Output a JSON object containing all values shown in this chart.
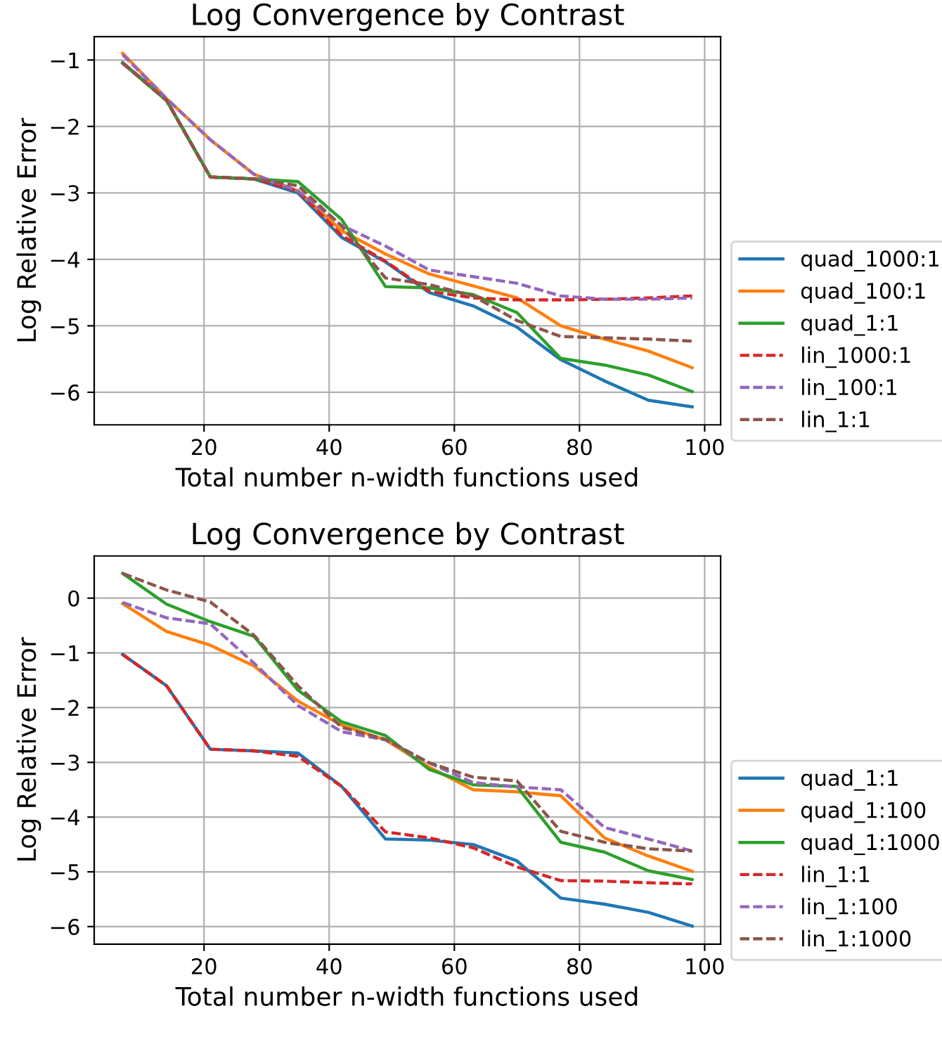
{
  "chart_data": [
    {
      "type": "line",
      "title": "Log Convergence by Contrast",
      "xlabel": "Total number n-width functions used",
      "ylabel": "Log Relative Error",
      "x": [
        7,
        14,
        21,
        28,
        35,
        42,
        49,
        56,
        63,
        70,
        77,
        84,
        91,
        98
      ],
      "xlim": [
        2.45,
        102.55
      ],
      "xticks": [
        20,
        40,
        60,
        80,
        100
      ],
      "ylim": [
        -6.49,
        -0.65
      ],
      "yticks": [
        -6,
        -5,
        -4,
        -3,
        -2,
        -1
      ],
      "grid": true,
      "legend": "right",
      "marker": "none",
      "series": [
        {
          "name": "quad_1000:1",
          "color": "#1f77b4",
          "line_style": "solid",
          "values": [
            -1.04,
            -1.6,
            -2.76,
            -2.79,
            -3.0,
            -3.67,
            -4.04,
            -4.5,
            -4.7,
            -5.02,
            -5.51,
            -5.83,
            -6.12,
            -6.22
          ]
        },
        {
          "name": "quad_100:1",
          "color": "#ff7f0e",
          "line_style": "solid",
          "values": [
            -0.9,
            -1.58,
            -2.2,
            -2.72,
            -2.97,
            -3.57,
            -3.92,
            -4.22,
            -4.4,
            -4.58,
            -5.0,
            -5.2,
            -5.38,
            -5.63
          ]
        },
        {
          "name": "quad_1:1",
          "color": "#2ca02c",
          "line_style": "solid",
          "values": [
            -1.05,
            -1.61,
            -2.76,
            -2.79,
            -2.83,
            -3.4,
            -4.41,
            -4.43,
            -4.53,
            -4.8,
            -5.49,
            -5.59,
            -5.74,
            -5.99
          ]
        },
        {
          "name": "lin_1000:1",
          "color": "#d62728",
          "line_style": "dashed",
          "values": [
            -1.04,
            -1.6,
            -2.76,
            -2.79,
            -2.97,
            -3.64,
            -4.03,
            -4.48,
            -4.58,
            -4.61,
            -4.61,
            -4.6,
            -4.58,
            -4.55
          ]
        },
        {
          "name": "lin_100:1",
          "color": "#9467bd",
          "line_style": "dashed",
          "values": [
            -0.92,
            -1.58,
            -2.2,
            -2.72,
            -2.97,
            -3.49,
            -3.8,
            -4.16,
            -4.26,
            -4.36,
            -4.55,
            -4.6,
            -4.6,
            -4.58
          ]
        },
        {
          "name": "lin_1:1",
          "color": "#8c564b",
          "line_style": "dashed",
          "values": [
            -1.05,
            -1.61,
            -2.76,
            -2.79,
            -2.89,
            -3.5,
            -4.28,
            -4.38,
            -4.55,
            -4.92,
            -5.16,
            -5.18,
            -5.2,
            -5.23
          ]
        }
      ]
    },
    {
      "type": "line",
      "title": "Log Convergence by Contrast",
      "xlabel": "Total number n-width functions used",
      "ylabel": "Log Relative Error",
      "x": [
        7,
        14,
        21,
        28,
        35,
        42,
        49,
        56,
        63,
        70,
        77,
        84,
        91,
        98
      ],
      "xlim": [
        2.45,
        102.55
      ],
      "xticks": [
        20,
        40,
        60,
        80,
        100
      ],
      "ylim": [
        -6.32,
        0.77
      ],
      "yticks": [
        -6,
        -5,
        -4,
        -3,
        -2,
        -1,
        0
      ],
      "grid": true,
      "legend": "right",
      "marker": "none",
      "series": [
        {
          "name": "quad_1:1",
          "color": "#1f77b4",
          "line_style": "solid",
          "values": [
            -1.03,
            -1.6,
            -2.76,
            -2.79,
            -2.83,
            -3.44,
            -4.4,
            -4.42,
            -4.5,
            -4.8,
            -5.48,
            -5.59,
            -5.74,
            -5.99
          ]
        },
        {
          "name": "quad_1:100",
          "color": "#ff7f0e",
          "line_style": "solid",
          "values": [
            -0.1,
            -0.61,
            -0.86,
            -1.24,
            -1.88,
            -2.32,
            -2.59,
            -3.09,
            -3.5,
            -3.54,
            -3.61,
            -4.38,
            -4.71,
            -4.99
          ]
        },
        {
          "name": "quad_1:1000",
          "color": "#2ca02c",
          "line_style": "solid",
          "values": [
            0.45,
            -0.11,
            -0.43,
            -0.7,
            -1.68,
            -2.26,
            -2.51,
            -3.13,
            -3.41,
            -3.44,
            -4.46,
            -4.64,
            -4.98,
            -5.14
          ]
        },
        {
          "name": "lin_1:1",
          "color": "#d62728",
          "line_style": "dashed",
          "values": [
            -1.03,
            -1.6,
            -2.76,
            -2.79,
            -2.89,
            -3.44,
            -4.27,
            -4.38,
            -4.56,
            -4.91,
            -5.16,
            -5.17,
            -5.2,
            -5.22
          ]
        },
        {
          "name": "lin_1:100",
          "color": "#9467bd",
          "line_style": "dashed",
          "values": [
            -0.08,
            -0.36,
            -0.47,
            -1.19,
            -1.96,
            -2.44,
            -2.59,
            -3.01,
            -3.37,
            -3.45,
            -3.5,
            -4.19,
            -4.4,
            -4.62
          ]
        },
        {
          "name": "lin_1:1000",
          "color": "#8c564b",
          "line_style": "dashed",
          "values": [
            0.45,
            0.15,
            -0.07,
            -0.68,
            -1.6,
            -2.36,
            -2.58,
            -3.01,
            -3.27,
            -3.34,
            -4.26,
            -4.46,
            -4.58,
            -4.62
          ]
        }
      ]
    }
  ]
}
